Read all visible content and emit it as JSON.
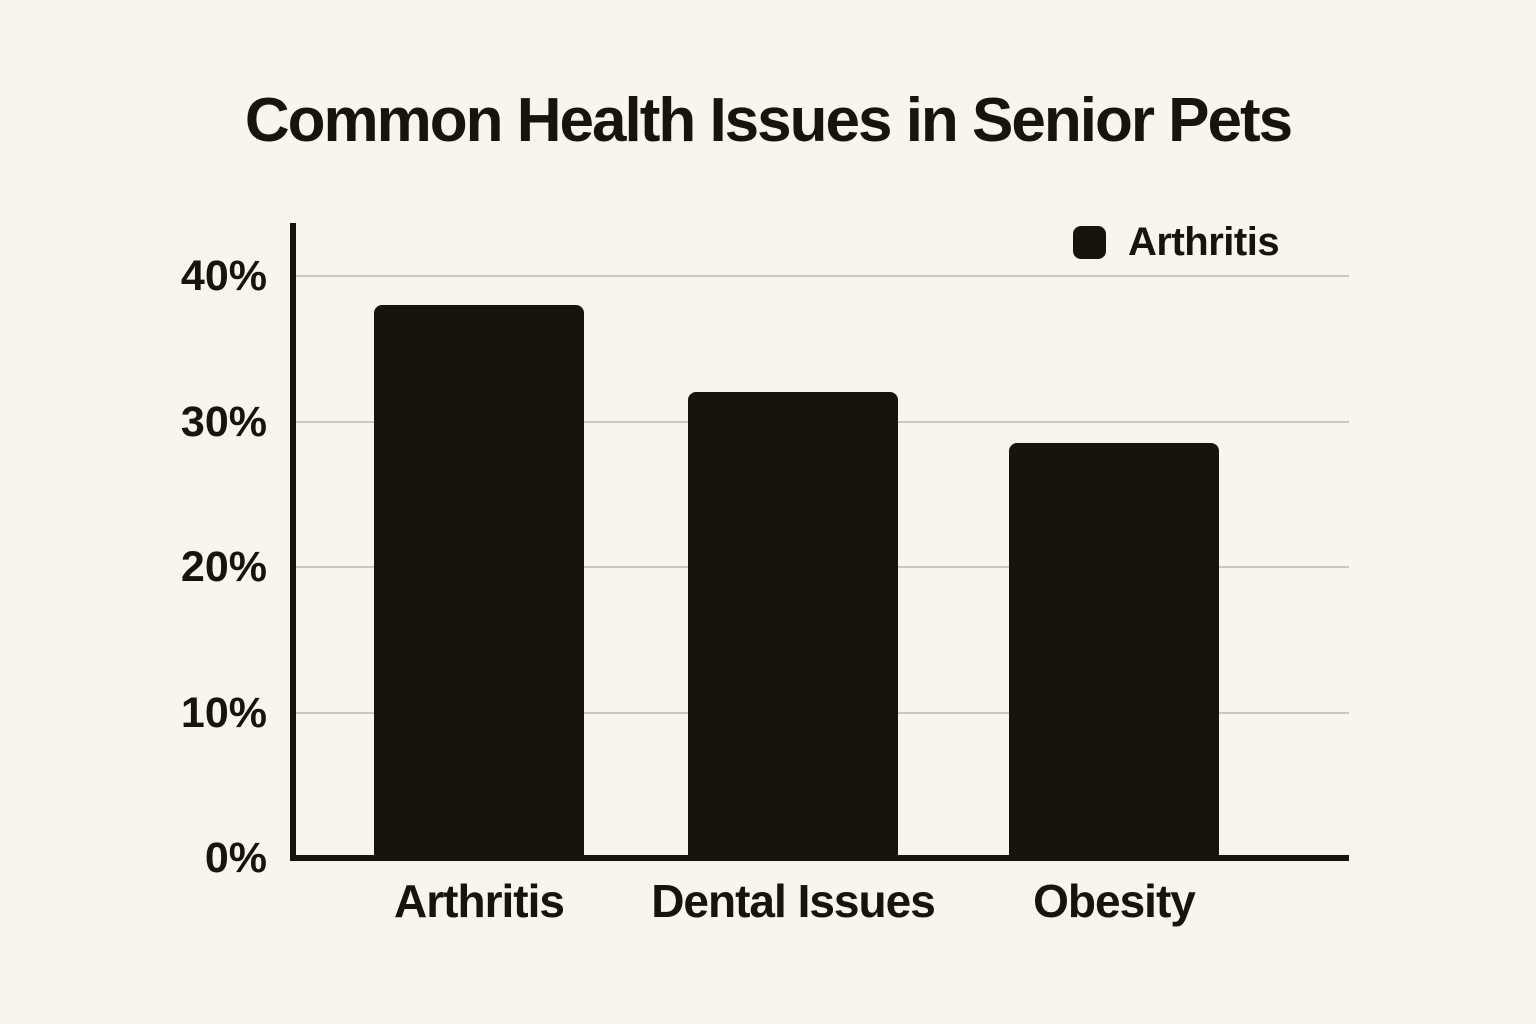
{
  "title": "Common Health Issues in Senior Pets",
  "legend": {
    "label": "Arthritis"
  },
  "colors": {
    "background": "#f8f5ee",
    "bar": "#17130f",
    "axis": "#17130f",
    "text": "#17130f",
    "gridline": "#cac7c0"
  },
  "chart_data": {
    "type": "bar",
    "title": "Common Health Issues in Senior Pets",
    "categories": [
      "Arthritis",
      "Dental Issues",
      "Obesity"
    ],
    "series": [
      {
        "name": "Arthritis",
        "values": [
          38,
          32,
          28.5
        ]
      }
    ],
    "unit": "%",
    "xlabel": "",
    "ylabel": "",
    "ylim": [
      0,
      43.5
    ],
    "y_ticks": [
      0,
      10,
      20,
      30,
      40
    ],
    "y_tick_format": "{v}%",
    "grid": "horizontal-only",
    "legend_position": "top-right",
    "bar_color": "#17130f"
  }
}
